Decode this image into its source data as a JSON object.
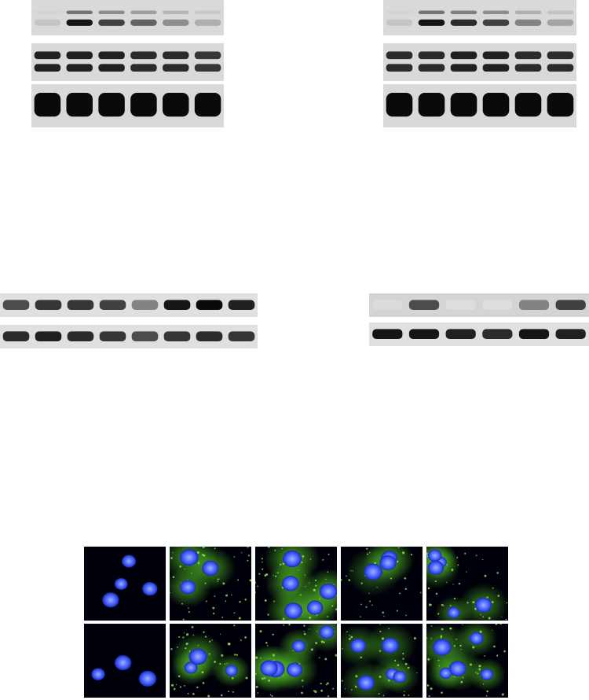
{
  "figure": {
    "panels": [
      {
        "id": "top-left-blot",
        "strips": [
          {
            "lanes": 6,
            "pattern": "faint-then-dark",
            "intensities": [
              0.15,
              0.95,
              0.75,
              0.6,
              0.4,
              0.25
            ]
          },
          {
            "lanes": 6,
            "pattern": "double-band",
            "intensities": [
              0.9,
              0.9,
              0.9,
              0.85,
              0.85,
              0.8
            ]
          },
          {
            "lanes": 6,
            "pattern": "loading-control",
            "intensities": [
              1,
              1,
              1,
              1,
              1,
              1
            ]
          }
        ]
      },
      {
        "id": "top-right-blot",
        "strips": [
          {
            "lanes": 6,
            "pattern": "faint-then-dark",
            "intensities": [
              0.15,
              0.95,
              0.85,
              0.75,
              0.45,
              0.3
            ]
          },
          {
            "lanes": 6,
            "pattern": "double-band",
            "intensities": [
              0.85,
              0.85,
              0.9,
              0.9,
              0.85,
              0.85
            ]
          },
          {
            "lanes": 6,
            "pattern": "loading-control",
            "intensities": [
              1,
              1,
              1,
              1,
              1,
              1
            ]
          }
        ]
      },
      {
        "id": "middle-left-blot",
        "strips": [
          {
            "lanes": 8,
            "intensities": [
              0.7,
              0.8,
              0.8,
              0.75,
              0.45,
              0.95,
              1.0,
              0.9
            ]
          },
          {
            "lanes": 8,
            "intensities": [
              0.85,
              0.9,
              0.85,
              0.8,
              0.7,
              0.8,
              0.85,
              0.8
            ]
          }
        ]
      },
      {
        "id": "middle-right-blot",
        "strips": [
          {
            "lanes": 6,
            "intensities": [
              0.05,
              0.7,
              0.04,
              0.04,
              0.45,
              0.75
            ]
          },
          {
            "lanes": 6,
            "intensities": [
              0.95,
              0.95,
              0.9,
              0.85,
              0.95,
              0.9
            ]
          }
        ]
      },
      {
        "id": "bottom-microscopy-grid",
        "rows": 2,
        "cols": 5,
        "channels": {
          "nuclei": "#3a55ff",
          "marker": "#5cd629"
        },
        "green_levels": [
          [
            0.0,
            0.8,
            0.9,
            0.55,
            0.7
          ],
          [
            0.0,
            0.85,
            0.8,
            0.6,
            0.75
          ]
        ]
      }
    ]
  }
}
